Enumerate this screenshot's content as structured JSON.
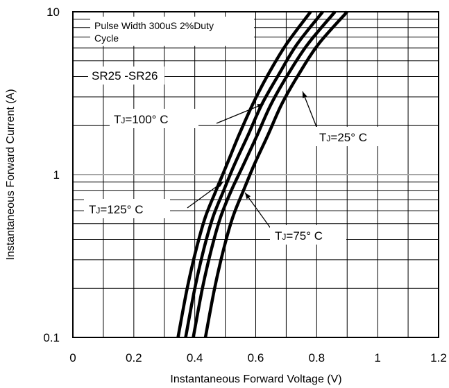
{
  "chart_data": {
    "type": "line",
    "xlabel": "Instantaneous Forward Voltage (V)",
    "ylabel": "Instantaneous Forward Current (A)",
    "xlim": [
      0,
      1.2
    ],
    "ylim": [
      0.1,
      10
    ],
    "yscale": "log",
    "grid": true,
    "x_ticks": [
      "0",
      "0.2",
      "0.4",
      "0.6",
      "0.8",
      "1",
      "1.2"
    ],
    "y_ticks": [
      "0.1",
      "1",
      "10"
    ],
    "notes": {
      "line1": "Pulse Width 300uS 2%Duty",
      "line2": "Cycle",
      "part": "SR25 -SR26"
    },
    "series": [
      {
        "name": "TJ=125° C",
        "label_main": "T",
        "label_sub": "J",
        "label_rest": "=125° C",
        "color": "#000000",
        "points": [
          [
            0.345,
            0.1
          ],
          [
            0.375,
            0.2
          ],
          [
            0.405,
            0.35
          ],
          [
            0.435,
            0.55
          ],
          [
            0.47,
            0.8
          ],
          [
            0.505,
            1.15
          ],
          [
            0.545,
            1.75
          ],
          [
            0.59,
            2.7
          ],
          [
            0.64,
            4.1
          ],
          [
            0.7,
            6.3
          ],
          [
            0.78,
            10
          ]
        ]
      },
      {
        "name": "TJ=100° C",
        "label_main": "T",
        "label_sub": "J",
        "label_rest": "=100° C",
        "color": "#000000",
        "points": [
          [
            0.37,
            0.1
          ],
          [
            0.4,
            0.2
          ],
          [
            0.43,
            0.35
          ],
          [
            0.46,
            0.55
          ],
          [
            0.495,
            0.8
          ],
          [
            0.53,
            1.15
          ],
          [
            0.575,
            1.75
          ],
          [
            0.62,
            2.7
          ],
          [
            0.675,
            4.1
          ],
          [
            0.735,
            6.3
          ],
          [
            0.82,
            10
          ]
        ]
      },
      {
        "name": "TJ=75° C",
        "label_main": "T",
        "label_sub": "J",
        "label_rest": "=75° C",
        "color": "#000000",
        "points": [
          [
            0.395,
            0.1
          ],
          [
            0.425,
            0.2
          ],
          [
            0.455,
            0.35
          ],
          [
            0.485,
            0.55
          ],
          [
            0.52,
            0.8
          ],
          [
            0.56,
            1.15
          ],
          [
            0.605,
            1.75
          ],
          [
            0.65,
            2.7
          ],
          [
            0.705,
            4.1
          ],
          [
            0.77,
            6.3
          ],
          [
            0.86,
            10
          ]
        ]
      },
      {
        "name": "TJ=25° C",
        "label_main": "T",
        "label_sub": "J",
        "label_rest": "=25° C",
        "color": "#000000",
        "points": [
          [
            0.435,
            0.1
          ],
          [
            0.465,
            0.2
          ],
          [
            0.495,
            0.35
          ],
          [
            0.525,
            0.55
          ],
          [
            0.56,
            0.8
          ],
          [
            0.595,
            1.15
          ],
          [
            0.64,
            1.75
          ],
          [
            0.685,
            2.7
          ],
          [
            0.74,
            4.1
          ],
          [
            0.805,
            6.3
          ],
          [
            0.9,
            10
          ]
        ]
      }
    ]
  }
}
